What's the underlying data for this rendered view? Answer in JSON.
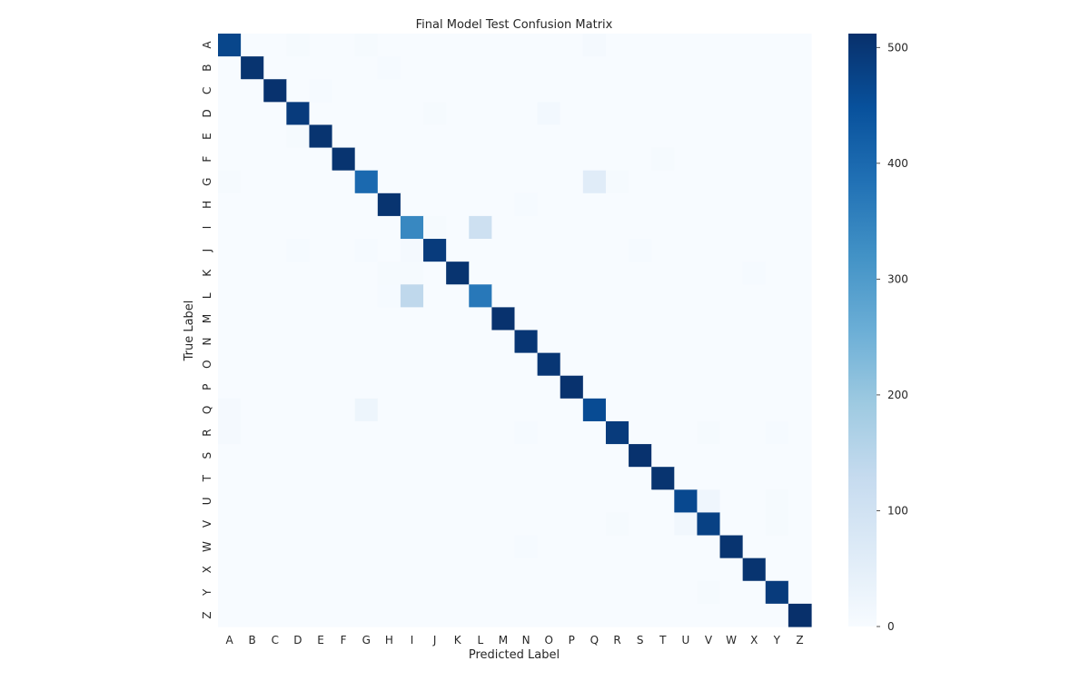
{
  "chart_data": {
    "type": "heatmap",
    "title": "Final Model Test Confusion Matrix",
    "xlabel": "Predicted Label",
    "ylabel": "True Label",
    "labels": [
      "A",
      "B",
      "C",
      "D",
      "E",
      "F",
      "G",
      "H",
      "I",
      "J",
      "K",
      "L",
      "M",
      "N",
      "O",
      "P",
      "Q",
      "R",
      "S",
      "T",
      "U",
      "V",
      "W",
      "X",
      "Y",
      "Z"
    ],
    "diagonal": [
      470,
      505,
      508,
      490,
      505,
      505,
      400,
      505,
      340,
      490,
      505,
      370,
      508,
      500,
      500,
      508,
      460,
      490,
      508,
      505,
      465,
      480,
      505,
      505,
      490,
      512
    ],
    "off_diagonal": [
      {
        "true": "A",
        "pred": "D",
        "value": 5
      },
      {
        "true": "A",
        "pred": "G",
        "value": 5
      },
      {
        "true": "A",
        "pred": "Q",
        "value": 8
      },
      {
        "true": "B",
        "pred": "H",
        "value": 4
      },
      {
        "true": "C",
        "pred": "E",
        "value": 4
      },
      {
        "true": "D",
        "pred": "J",
        "value": 5
      },
      {
        "true": "D",
        "pred": "O",
        "value": 12
      },
      {
        "true": "E",
        "pred": "D",
        "value": 5
      },
      {
        "true": "F",
        "pred": "T",
        "value": 6
      },
      {
        "true": "G",
        "pred": "A",
        "value": 5
      },
      {
        "true": "G",
        "pred": "Q",
        "value": 60
      },
      {
        "true": "G",
        "pred": "R",
        "value": 5
      },
      {
        "true": "H",
        "pred": "N",
        "value": 4
      },
      {
        "true": "I",
        "pred": "J",
        "value": 5
      },
      {
        "true": "I",
        "pred": "L",
        "value": 110
      },
      {
        "true": "J",
        "pred": "D",
        "value": 4
      },
      {
        "true": "J",
        "pred": "G",
        "value": 4
      },
      {
        "true": "J",
        "pred": "I",
        "value": 8
      },
      {
        "true": "J",
        "pred": "S",
        "value": 4
      },
      {
        "true": "K",
        "pred": "H",
        "value": 5
      },
      {
        "true": "K",
        "pred": "I",
        "value": 5
      },
      {
        "true": "K",
        "pred": "X",
        "value": 4
      },
      {
        "true": "L",
        "pred": "H",
        "value": 4
      },
      {
        "true": "L",
        "pred": "I",
        "value": 140
      },
      {
        "true": "Q",
        "pred": "A",
        "value": 8
      },
      {
        "true": "Q",
        "pred": "G",
        "value": 25
      },
      {
        "true": "R",
        "pred": "A",
        "value": 8
      },
      {
        "true": "R",
        "pred": "N",
        "value": 4
      },
      {
        "true": "R",
        "pred": "V",
        "value": 5
      },
      {
        "true": "R",
        "pred": "Y",
        "value": 4
      },
      {
        "true": "U",
        "pred": "V",
        "value": 20
      },
      {
        "true": "U",
        "pred": "Y",
        "value": 6
      },
      {
        "true": "V",
        "pred": "R",
        "value": 5
      },
      {
        "true": "V",
        "pred": "U",
        "value": 15
      },
      {
        "true": "V",
        "pred": "Y",
        "value": 5
      },
      {
        "true": "W",
        "pred": "N",
        "value": 4
      },
      {
        "true": "Y",
        "pred": "V",
        "value": 5
      }
    ],
    "colorbar": {
      "min": 0,
      "max": 512,
      "ticks": [
        0,
        100,
        200,
        300,
        400,
        500
      ],
      "colormap": "Blues",
      "low_color": "#f7fbff",
      "high_color": "#08306b"
    },
    "legend_position": "right"
  }
}
